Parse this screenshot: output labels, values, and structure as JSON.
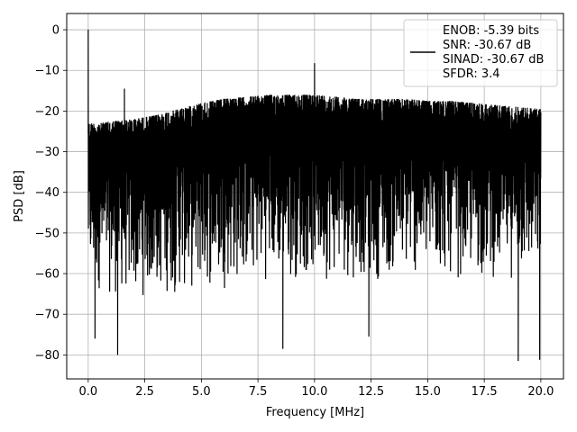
{
  "chart_data": {
    "type": "line",
    "xlabel": "Frequency [MHz]",
    "ylabel": "PSD [dB]",
    "xlim": [
      -0.95,
      21.0
    ],
    "ylim": [
      -85.9,
      4.0
    ],
    "xticks": [
      0.0,
      2.5,
      5.0,
      7.5,
      10.0,
      12.5,
      15.0,
      17.5,
      20.0
    ],
    "xtick_labels": [
      "0.0",
      "2.5",
      "5.0",
      "7.5",
      "10.0",
      "12.5",
      "15.0",
      "17.5",
      "20.0"
    ],
    "yticks": [
      0,
      -10,
      -20,
      -30,
      -40,
      -50,
      -60,
      -70,
      -80
    ],
    "ytick_labels": [
      "0",
      "−10",
      "−20",
      "−30",
      "−40",
      "−50",
      "−60",
      "−70",
      "−80"
    ],
    "grid": true,
    "legend_position": "top-right",
    "series": [
      {
        "color": "#000000",
        "legend_lines": [
          "ENOB: -5.39 bits",
          "SNR: -30.67 dB",
          "SINAD: -30.67 dB",
          "SFDR: 3.4"
        ],
        "envelope": {
          "x": [
            0.0,
            0.5,
            1.0,
            2.0,
            3.0,
            4.0,
            5.0,
            6.0,
            7.0,
            8.0,
            9.0,
            10.0,
            11.0,
            12.0,
            13.0,
            14.0,
            15.0,
            16.0,
            17.0,
            18.0,
            19.0,
            20.0
          ],
          "upper": [
            -23,
            -23,
            -22.5,
            -22,
            -21,
            -19.5,
            -18,
            -17,
            -16.5,
            -16,
            -16,
            -16,
            -16.5,
            -17,
            -17,
            -17,
            -17.5,
            -17.5,
            -18,
            -18.5,
            -19,
            -19.5
          ],
          "lower": [
            -64,
            -65,
            -66,
            -67,
            -66,
            -66,
            -65,
            -64,
            -63,
            -62,
            -62,
            -62,
            -62,
            -62,
            -62,
            -62,
            -62,
            -62,
            -62,
            -62,
            -62,
            -62
          ]
        },
        "spikes": [
          {
            "x": 0.0,
            "y": 0.0
          },
          {
            "x": 1.6,
            "y": -14.5
          },
          {
            "x": 10.0,
            "y": -8.2
          }
        ],
        "dips": [
          {
            "x": 0.3,
            "y": -76
          },
          {
            "x": 1.3,
            "y": -80
          },
          {
            "x": 8.6,
            "y": -78.5
          },
          {
            "x": 12.4,
            "y": -75.5
          },
          {
            "x": 19.0,
            "y": -81.5
          },
          {
            "x": 19.95,
            "y": -81.2
          }
        ]
      }
    ]
  }
}
